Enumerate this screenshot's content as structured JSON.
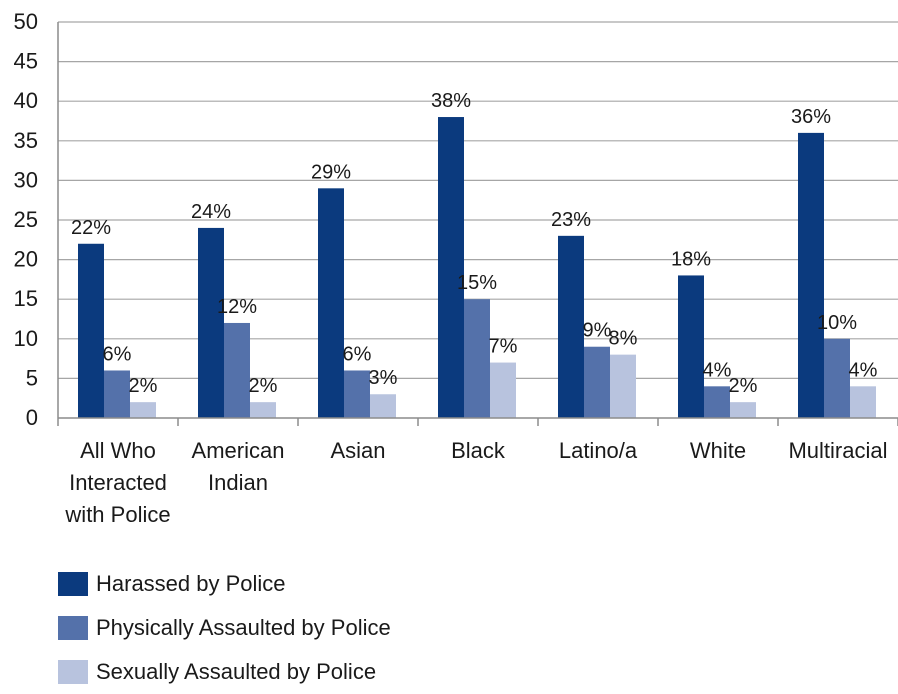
{
  "chart_data": {
    "type": "bar",
    "categories": [
      [
        "All Who",
        "Interacted",
        "with Police"
      ],
      [
        "American",
        "Indian"
      ],
      [
        "Asian"
      ],
      [
        "Black"
      ],
      [
        "Latino/a"
      ],
      [
        "White"
      ],
      [
        "Multiracial"
      ]
    ],
    "series": [
      {
        "name": "Harassed by Police",
        "color": "#0b3a7e",
        "values": [
          22,
          24,
          29,
          38,
          23,
          18,
          36
        ]
      },
      {
        "name": "Physically Assaulted by Police",
        "color": "#5471aa",
        "values": [
          6,
          12,
          6,
          15,
          9,
          4,
          10
        ]
      },
      {
        "name": "Sexually Assaulted by Police",
        "color": "#b8c3de",
        "values": [
          2,
          2,
          3,
          7,
          8,
          2,
          4
        ]
      }
    ],
    "data_label_suffix": "%",
    "ylim": [
      0,
      50
    ],
    "yticks": [
      0,
      5,
      10,
      15,
      20,
      25,
      30,
      35,
      40,
      45,
      50
    ],
    "grid": true,
    "legend_position": "bottom-left"
  }
}
